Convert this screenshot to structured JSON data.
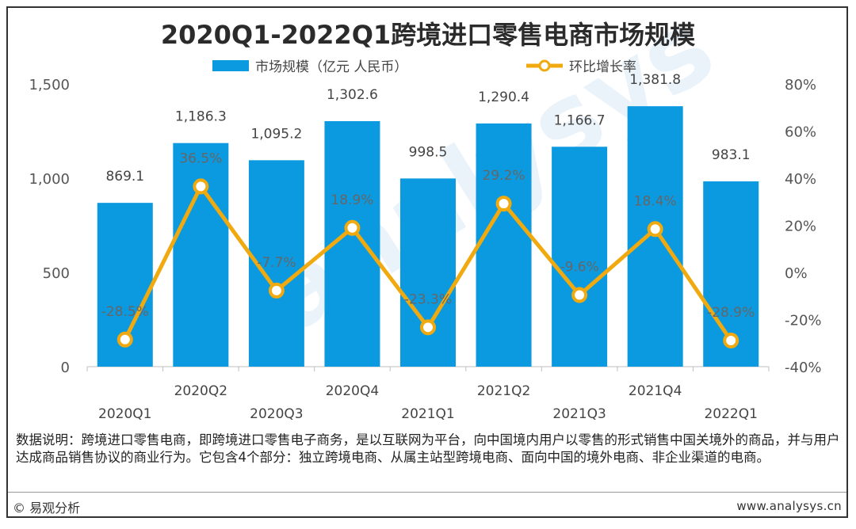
{
  "chart_data": {
    "type": "bar",
    "title": "2020Q1-2022Q1跨境进口零售电商市场规模",
    "categories": [
      "2020Q1",
      "2020Q2",
      "2020Q3",
      "2020Q4",
      "2021Q1",
      "2021Q2",
      "2021Q3",
      "2021Q4",
      "2022Q1"
    ],
    "series": [
      {
        "name": "市场规模（亿元 人民币）",
        "type": "bar",
        "axis": "left",
        "values": [
          869.1,
          1186.3,
          1095.2,
          1302.6,
          998.5,
          1290.4,
          1166.7,
          1381.8,
          983.1
        ],
        "labels": [
          "869.1",
          "1,186.3",
          "1,095.2",
          "1,302.6",
          "998.5",
          "1,290.4",
          "1,166.7",
          "1,381.8",
          "983.1"
        ]
      },
      {
        "name": "环比增长率",
        "type": "line",
        "axis": "right",
        "values": [
          -28.5,
          36.5,
          -7.7,
          18.9,
          -23.3,
          29.2,
          -9.6,
          18.4,
          -28.9
        ],
        "labels": [
          "-28.5%",
          "36.5%",
          "-7.7%",
          "18.9%",
          "-23.3%",
          "29.2%",
          "-9.6%",
          "18.4%",
          "-28.9%"
        ]
      }
    ],
    "y_left": {
      "min": 0,
      "max": 1500,
      "ticks": [
        "0",
        "500",
        "1,000",
        "1,500"
      ]
    },
    "y_right": {
      "min": -40,
      "max": 80,
      "ticks": [
        "-40%",
        "-20%",
        "0%",
        "20%",
        "40%",
        "60%",
        "80%"
      ]
    },
    "legend": "top-center",
    "grid": false,
    "colors": {
      "bar": "#0b9ae0",
      "line": "#f0a90e",
      "marker_fill": "#ffffff"
    }
  },
  "watermark_text": "analysys",
  "note": "数据说明：跨境进口零售电商，即跨境进口零售电子商务，是以互联网为平台，向中国境内用户以零售的形式销售中国关境外的商品，并与用户达成商品销售协议的商业行为。它包含4个部分：独立跨境电商、从属主站型跨境电商、面向中国的境外电商、非企业渠道的电商。",
  "copyright": "© 易观分析",
  "website": "www.analysys.cn"
}
